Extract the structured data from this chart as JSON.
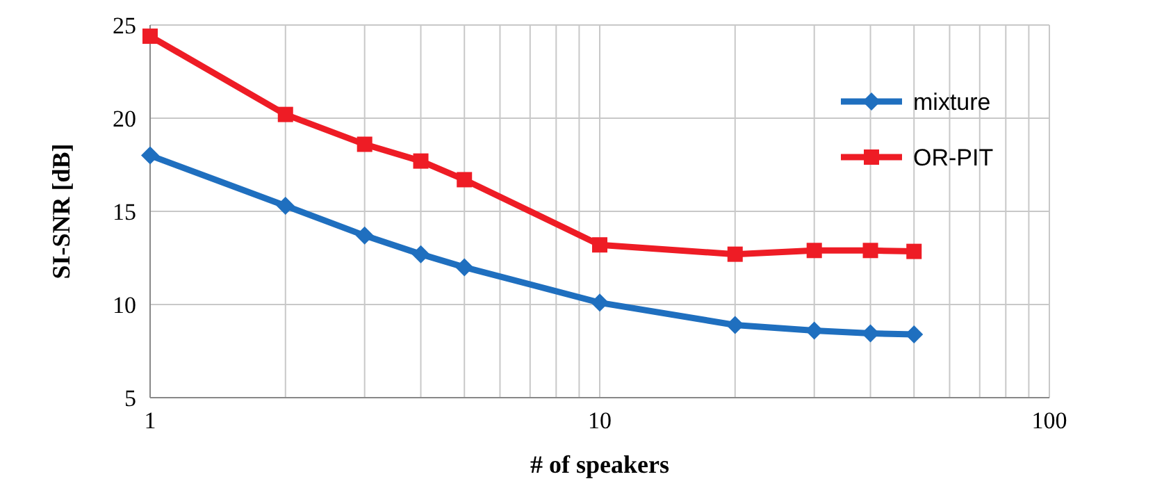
{
  "chart_data": {
    "type": "line",
    "xlabel": "# of speakers",
    "ylabel": "SI-SNR [dB]",
    "log": "x",
    "xlim": [
      1,
      100
    ],
    "xticks": [
      1,
      {
        "value": 2,
        "label": null
      },
      {
        "value": 3,
        "label": null
      },
      {
        "value": 4,
        "label": null
      },
      {
        "value": 5,
        "label": null
      },
      {
        "value": 6,
        "label": null
      },
      {
        "value": 7,
        "label": null
      },
      {
        "value": 8,
        "label": null
      },
      {
        "value": 9,
        "label": null
      },
      10,
      {
        "value": 20,
        "label": null
      },
      {
        "value": 30,
        "label": null
      },
      {
        "value": 40,
        "label": null
      },
      {
        "value": 50,
        "label": null
      },
      {
        "value": 60,
        "label": null
      },
      {
        "value": 70,
        "label": null
      },
      {
        "value": 80,
        "label": null
      },
      {
        "value": 90,
        "label": null
      },
      100
    ],
    "ylim": [
      5,
      25
    ],
    "yticks": [
      5,
      10,
      15,
      20,
      25
    ],
    "grid": true,
    "legend": "right",
    "x": [
      1,
      2,
      3,
      4,
      5,
      10,
      20,
      30,
      40,
      50
    ],
    "series": [
      {
        "name": "mixture",
        "color": "#1f6fbf",
        "marker": "diamond",
        "values": [
          18.0,
          15.3,
          13.7,
          12.7,
          12.0,
          10.1,
          8.9,
          8.6,
          8.45,
          8.4
        ]
      },
      {
        "name": "OR-PIT",
        "color": "#ee1c25",
        "marker": "square",
        "values": [
          24.4,
          20.2,
          18.6,
          17.7,
          16.7,
          13.2,
          12.7,
          12.9,
          12.9,
          12.85
        ]
      }
    ]
  }
}
